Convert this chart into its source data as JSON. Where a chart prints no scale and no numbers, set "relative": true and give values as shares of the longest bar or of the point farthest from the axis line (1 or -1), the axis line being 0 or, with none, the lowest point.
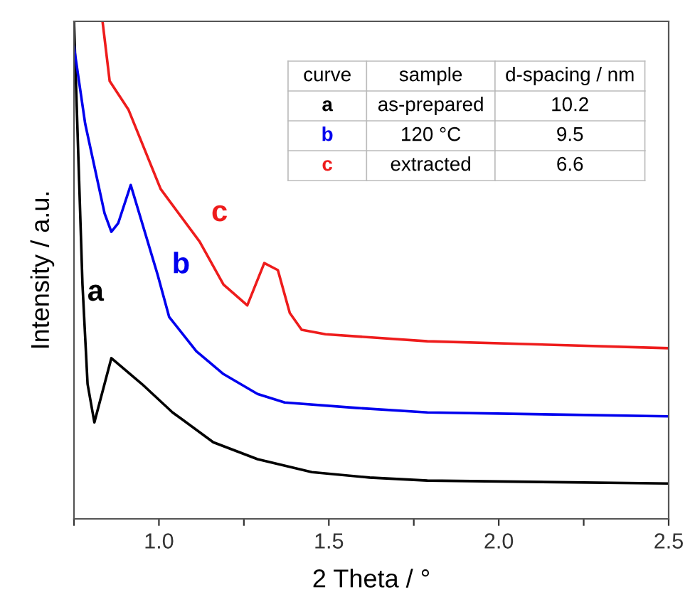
{
  "chart_data": {
    "type": "line",
    "relative": true,
    "xlabel": "2 Theta / °",
    "ylabel": "Intensity / a.u.",
    "xlim": [
      0.75,
      2.5
    ],
    "xticks": [
      {
        "value": 0.75,
        "label": null
      },
      {
        "value": 1.0,
        "label": "1.0"
      },
      {
        "value": 1.25,
        "label": null
      },
      {
        "value": 1.5,
        "label": "1.5"
      },
      {
        "value": 1.75,
        "label": null
      },
      {
        "value": 2.0,
        "label": "2.0"
      },
      {
        "value": 2.25,
        "label": null
      },
      {
        "value": 2.5,
        "label": "2.5"
      }
    ],
    "grid": false,
    "legend": false,
    "tick_labels": "x",
    "line_style": "solid",
    "marker": "none",
    "series": [
      {
        "name": "a",
        "color": "#000000",
        "x": [
          0.75,
          0.775,
          0.79,
          0.81,
          0.86,
          0.95,
          1.04,
          1.16,
          1.29,
          1.45,
          1.62,
          1.79,
          2.5
        ],
        "values": [
          1.0,
          0.471,
          0.271,
          0.194,
          0.323,
          0.271,
          0.214,
          0.154,
          0.12,
          0.094,
          0.083,
          0.077,
          0.071
        ]
      },
      {
        "name": "b",
        "color": "#0000ee",
        "x": [
          0.75,
          0.783,
          0.84,
          0.86,
          0.88,
          0.917,
          0.996,
          1.03,
          1.11,
          1.19,
          1.29,
          1.37,
          1.58,
          1.79,
          2.5
        ],
        "values": [
          0.949,
          0.794,
          0.614,
          0.577,
          0.594,
          0.671,
          0.491,
          0.406,
          0.337,
          0.291,
          0.251,
          0.234,
          0.223,
          0.214,
          0.206
        ]
      },
      {
        "name": "c",
        "color": "#ee1c1c",
        "x": [
          0.834,
          0.855,
          0.91,
          1.005,
          1.12,
          1.19,
          1.26,
          1.31,
          1.35,
          1.385,
          1.42,
          1.49,
          1.79,
          2.5
        ],
        "values": [
          1.0,
          0.88,
          0.823,
          0.663,
          0.557,
          0.471,
          0.429,
          0.514,
          0.5,
          0.414,
          0.38,
          0.371,
          0.357,
          0.343
        ]
      }
    ],
    "annotations": [
      "curve",
      "sample",
      "d-spacing / nm",
      "a",
      "as-prepared",
      "10.2",
      "b",
      "120 °C",
      "9.5",
      "c",
      "extracted",
      "6.6"
    ]
  }
}
